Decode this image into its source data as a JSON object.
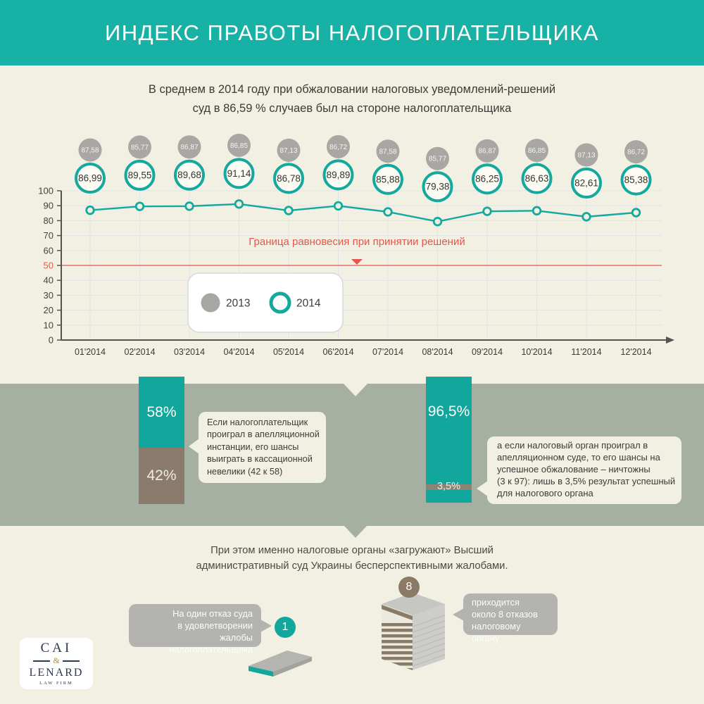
{
  "header": {
    "title": "ИНДЕКС ПРАВОТЫ НАЛОГОПЛАТЕЛЬЩИКА",
    "bg_color": "#18b1a6"
  },
  "subtitle": {
    "line1": "В среднем в 2014 году при обжаловании налоговых уведомлений-решений",
    "line2": "суд в 86,59 % случаев был на стороне налогоплательщика"
  },
  "chart_data": {
    "type": "line",
    "x_categories": [
      "01'2014",
      "02'2014",
      "03'2014",
      "04'2014",
      "05'2014",
      "06'2014",
      "07'2014",
      "08'2014",
      "09'2014",
      "10'2014",
      "11'2014",
      "12'2014"
    ],
    "ylim": [
      0,
      100
    ],
    "yticks": [
      0,
      10,
      20,
      30,
      40,
      50,
      60,
      70,
      80,
      90,
      100
    ],
    "grid": true,
    "series": [
      {
        "name": "2013",
        "marker": "filled-circle",
        "color": "#a9a7a3",
        "values": [
          87.58,
          85.77,
          86.87,
          86.85,
          87.13,
          86.72,
          87.58,
          85.77,
          86.87,
          86.85,
          87.13,
          86.72
        ],
        "labels": [
          "87,58",
          "85,77",
          "86,87",
          "86,85",
          "87,13",
          "86,72",
          "87,58",
          "85,77",
          "86,87",
          "86,85",
          "87,13",
          "86,72"
        ],
        "line": false
      },
      {
        "name": "2014",
        "marker": "ring",
        "color": "#14a89e",
        "values": [
          86.99,
          89.55,
          89.68,
          91.14,
          86.78,
          89.89,
          85.88,
          79.38,
          86.25,
          86.63,
          82.61,
          85.38
        ],
        "labels": [
          "86,99",
          "89,55",
          "89,68",
          "91,14",
          "86,78",
          "89,89",
          "85,88",
          "79,38",
          "86,25",
          "86,63",
          "82,61",
          "85,38"
        ],
        "line": true
      }
    ],
    "threshold": {
      "value": 50,
      "label": "Граница равновесия при принятии решений",
      "color": "#e4574e"
    },
    "legend": {
      "items": [
        "2013",
        "2014"
      ],
      "position": "inside-bottom-left"
    }
  },
  "mid": {
    "left_bar": {
      "segments": [
        {
          "label": "58%",
          "value": 58,
          "color": "#12a79d"
        },
        {
          "label": "42%",
          "value": 42,
          "color": "#8b7b6d"
        }
      ]
    },
    "left_callout_lines": [
      "Если налогоплательщик",
      "проиграл в апелляционной",
      "инстанции, его шансы",
      "выиграть в кассационной",
      "невелики (42 к 58)"
    ],
    "right_bar": {
      "top_label": "96,5%",
      "top_value": 96.5,
      "stripe_label": "3,5%",
      "stripe_value": 3.5,
      "color": "#12a79d",
      "stripe_color": "#8d8377"
    },
    "right_callout_lines": [
      "а если налоговый орган проиграл в",
      "апелляционном суде, то его шансы на",
      "успешное обжалование – ничтожны",
      "(3 к 97): лишь в 3,5% результат успешный",
      "для налогового органа"
    ]
  },
  "bottom": {
    "para_line1": "При этом именно налоговые органы «загружают» Высший",
    "para_line2": "административный суд Украины бесперспективными жалобами.",
    "left_bubble_lines": [
      "На один отказ суда",
      "в удовлетворении",
      "жалобы налогоплательщика"
    ],
    "one_badge": "1",
    "eight_badge": "8",
    "right_bubble_lines": [
      "приходится",
      "около 8 отказов",
      "налоговому органу"
    ],
    "logo": {
      "name_top": "CAI",
      "amp": "&",
      "name_bottom": "LENARD",
      "tagline": "LAW FIRM"
    }
  }
}
